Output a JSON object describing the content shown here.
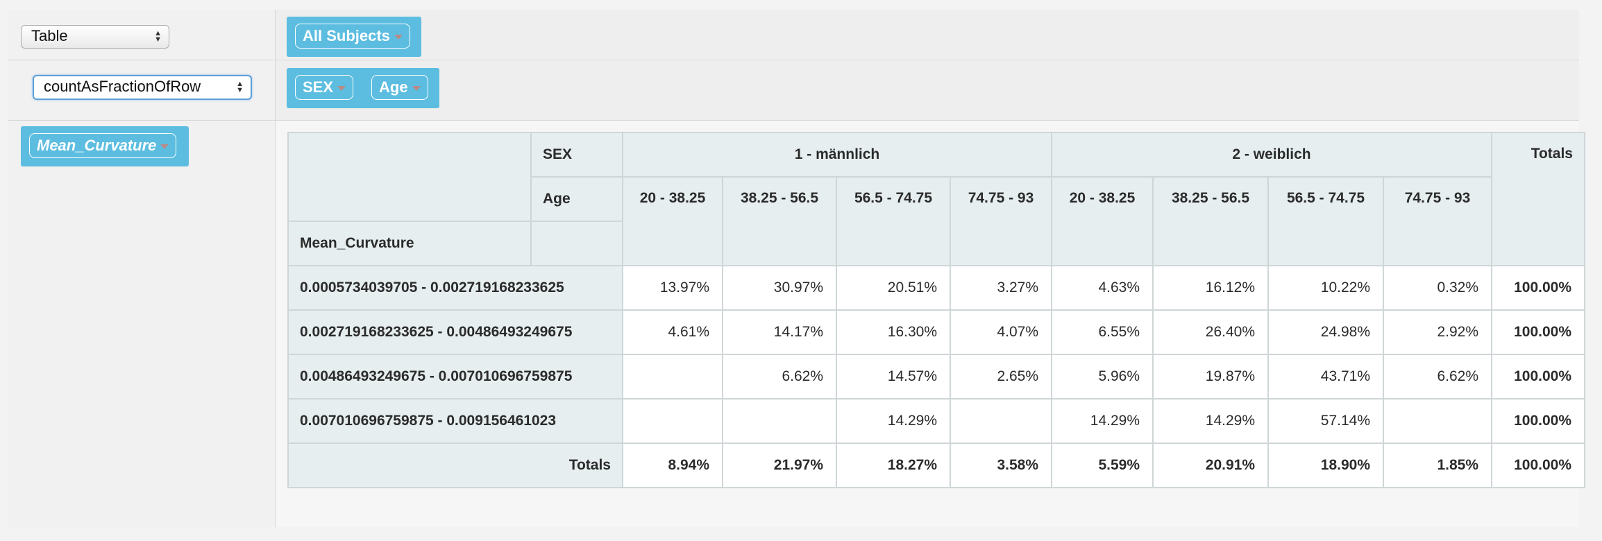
{
  "controls": {
    "renderer_select": "Table",
    "aggregator_select": "countAsFractionOfRow"
  },
  "unused_attributes": [
    {
      "label": "All Subjects"
    }
  ],
  "column_attributes": [
    {
      "label": "SEX"
    },
    {
      "label": "Age"
    }
  ],
  "row_attributes": [
    {
      "label": "Mean_Curvature"
    }
  ],
  "pivot": {
    "header_sex_label": "SEX",
    "header_age_label": "Age",
    "row_attr_label": "Mean_Curvature",
    "totals_label": "Totals",
    "sex_groups": [
      {
        "label": "1 - männlich"
      },
      {
        "label": "2 - weiblich"
      }
    ],
    "age_columns": [
      "20 - 38.25",
      "38.25 - 56.5",
      "56.5 - 74.75",
      "74.75 - 93",
      "20 - 38.25",
      "38.25 - 56.5",
      "56.5 - 74.75",
      "74.75 - 93"
    ],
    "rows": [
      {
        "label": "0.0005734039705 - 0.002719168233625",
        "cells": [
          "13.97%",
          "30.97%",
          "20.51%",
          "3.27%",
          "4.63%",
          "16.12%",
          "10.22%",
          "0.32%"
        ],
        "total": "100.00%"
      },
      {
        "label": "0.002719168233625 - 0.00486493249675",
        "cells": [
          "4.61%",
          "14.17%",
          "16.30%",
          "4.07%",
          "6.55%",
          "26.40%",
          "24.98%",
          "2.92%"
        ],
        "total": "100.00%"
      },
      {
        "label": "0.00486493249675 - 0.007010696759875",
        "cells": [
          "",
          "6.62%",
          "14.57%",
          "2.65%",
          "5.96%",
          "19.87%",
          "43.71%",
          "6.62%"
        ],
        "total": "100.00%"
      },
      {
        "label": "0.007010696759875 - 0.009156461023",
        "cells": [
          "",
          "",
          "14.29%",
          "",
          "14.29%",
          "14.29%",
          "57.14%",
          ""
        ],
        "total": "100.00%"
      }
    ],
    "col_totals": [
      "8.94%",
      "21.97%",
      "18.27%",
      "3.58%",
      "5.59%",
      "20.91%",
      "18.90%",
      "1.85%"
    ],
    "grand_total": "100.00%"
  }
}
